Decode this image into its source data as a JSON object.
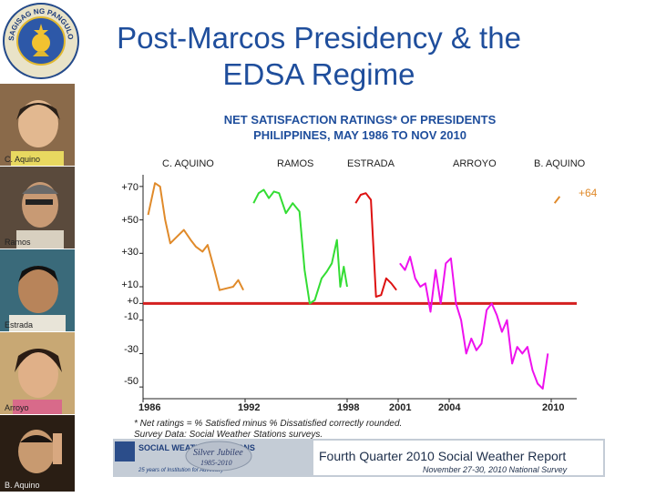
{
  "slide": {
    "title": "Post-Marcos Presidency & the EDSA Regime"
  },
  "seal": {
    "top_text": "SAGISAG NG PANGULO NG PILIPINAS"
  },
  "portraits": [
    "C. Aquino",
    "Ramos",
    "Estrada",
    "Arroyo",
    "B. Aquino"
  ],
  "chart_data": {
    "type": "line",
    "title": "NET SATISFACTION RATINGS* OF PRESIDENTS",
    "subtitle": "PHILIPPINES, MAY 1986 TO NOV 2010",
    "presidents": [
      "C. AQUINO",
      "RAMOS",
      "ESTRADA",
      "ARROYO",
      "B. AQUINO"
    ],
    "y_ticks": [
      "+70",
      "+50",
      "+30",
      "+10",
      "+0",
      "-10",
      "-30",
      "-50"
    ],
    "y_tick_values": [
      70,
      50,
      30,
      10,
      0,
      -10,
      -30,
      -50
    ],
    "x_ticks": [
      "1986",
      "1992",
      "1998",
      "2001",
      "2004",
      "2010"
    ],
    "x_tick_values": [
      1986,
      1992,
      1998,
      2001,
      2004,
      2010
    ],
    "xlim": [
      1986,
      2011.5
    ],
    "ylim": [
      -57,
      77
    ],
    "zero_line_color": "#d42020",
    "annotation": "+64",
    "series": [
      {
        "name": "C. AQUINO",
        "color": "#e08a2a",
        "x": [
          1986.3,
          1986.7,
          1987.0,
          1987.3,
          1987.6,
          1988.0,
          1988.4,
          1988.8,
          1989.1,
          1989.5,
          1989.8,
          1990.2,
          1990.5,
          1990.9,
          1991.3,
          1991.6,
          1991.9
        ],
        "y": [
          53,
          72,
          70,
          50,
          36,
          40,
          44,
          38,
          34,
          31,
          35,
          20,
          8,
          9,
          10,
          14,
          8
        ]
      },
      {
        "name": "RAMOS",
        "color": "#33dd33",
        "x": [
          1992.5,
          1992.8,
          1993.1,
          1993.4,
          1993.7,
          1994.0,
          1994.4,
          1994.8,
          1995.2,
          1995.5,
          1995.8,
          1996.1,
          1996.5,
          1996.8,
          1997.1,
          1997.4,
          1997.6,
          1997.8,
          1998.0
        ],
        "y": [
          60,
          66,
          68,
          63,
          67,
          66,
          54,
          60,
          55,
          20,
          0,
          2,
          15,
          19,
          24,
          38,
          10,
          22,
          10
        ]
      },
      {
        "name": "ESTRADA",
        "color": "#dd1111",
        "x": [
          1998.5,
          1998.8,
          1999.1,
          1999.4,
          1999.7,
          2000.0,
          2000.3,
          2000.6,
          2000.9
        ],
        "y": [
          60,
          65,
          66,
          62,
          4,
          5,
          15,
          12,
          8
        ]
      },
      {
        "name": "ARROYO",
        "color": "#ee11ee",
        "x": [
          2001.1,
          2001.4,
          2001.7,
          2002.0,
          2002.3,
          2002.6,
          2002.9,
          2003.2,
          2003.5,
          2003.8,
          2004.1,
          2004.4,
          2004.7,
          2005.0,
          2005.3,
          2005.6,
          2005.9,
          2006.2,
          2006.5,
          2006.8,
          2007.1,
          2007.4,
          2007.7,
          2008.0,
          2008.3,
          2008.6,
          2008.9,
          2009.2,
          2009.5,
          2009.8
        ],
        "y": [
          24,
          20,
          28,
          15,
          10,
          12,
          -5,
          20,
          0,
          24,
          27,
          0,
          -10,
          -30,
          -21,
          -28,
          -24,
          -4,
          0,
          -7,
          -17,
          -10,
          -36,
          -26,
          -30,
          -26,
          -40,
          -48,
          -51,
          -30
        ]
      },
      {
        "name": "B. AQUINO",
        "color": "#e08a2a",
        "x": [
          2010.2,
          2010.5
        ],
        "y": [
          60,
          64
        ]
      }
    ]
  },
  "footnote": {
    "line1": "* Net ratings = % Satisfied minus % Dissatisfied correctly rounded.",
    "line2": "Survey Data: Social Weather Stations surveys."
  },
  "banner": {
    "org_name": "SOCIAL WEATHER STATIONS",
    "jubilee": "Silver Jubilee",
    "jubilee_years": "1985-2010",
    "org_tagline": "25 years of Institution for Advocacy",
    "report_title": "Fourth Quarter 2010 Social Weather Report",
    "report_sub": "November 27-30, 2010 National Survey"
  }
}
